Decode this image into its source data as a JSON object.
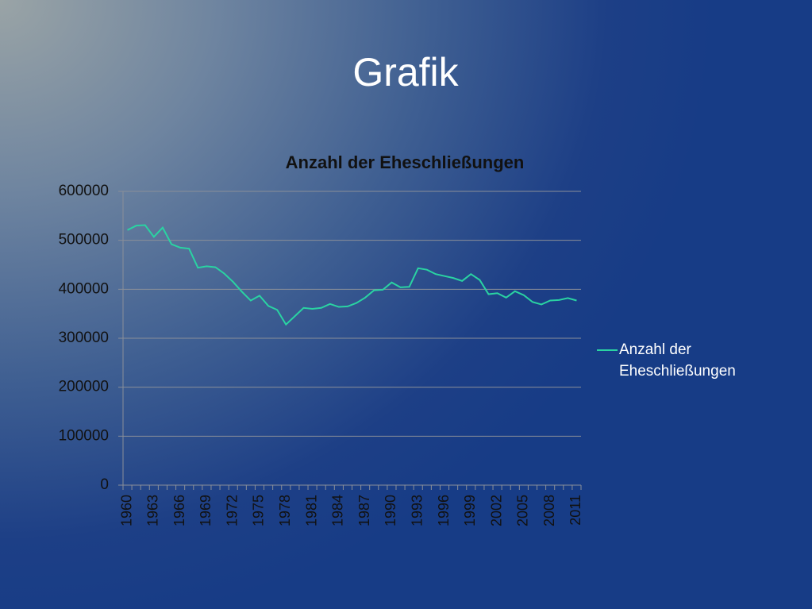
{
  "slide": {
    "title": "Grafik"
  },
  "chart_data": {
    "type": "line",
    "title": "Anzahl der Eheschließungen",
    "categories": [
      "1960",
      null,
      null,
      "1963",
      null,
      null,
      "1966",
      null,
      null,
      "1969",
      null,
      null,
      "1972",
      null,
      null,
      "1975",
      null,
      null,
      "1978",
      null,
      null,
      "1981",
      null,
      null,
      "1984",
      null,
      null,
      "1987",
      null,
      null,
      "1990",
      null,
      null,
      "1993",
      null,
      null,
      "1996",
      null,
      null,
      "1999",
      null,
      null,
      "2002",
      null,
      null,
      "2005",
      null,
      null,
      "2008",
      null,
      null,
      "2011"
    ],
    "series": [
      {
        "name": "Anzahl der Eheschließungen",
        "color": "#2ad3a2",
        "values": [
          521000,
          530000,
          531000,
          507000,
          526000,
          492000,
          485000,
          483000,
          444000,
          447000,
          445000,
          432000,
          415000,
          395000,
          377000,
          387000,
          366000,
          358000,
          328000,
          345000,
          362000,
          360000,
          362000,
          370000,
          364000,
          365000,
          372000,
          383000,
          398000,
          399000,
          414000,
          404000,
          405000,
          443000,
          440000,
          431000,
          427000,
          423000,
          417000,
          431000,
          419000,
          390000,
          392000,
          383000,
          396000,
          388000,
          374000,
          369000,
          377000,
          378000,
          382000,
          377000
        ]
      }
    ],
    "ylim": [
      0,
      600000
    ],
    "yticks": [
      0,
      100000,
      200000,
      300000,
      400000,
      500000,
      600000
    ],
    "grid": true,
    "legend": "right"
  }
}
